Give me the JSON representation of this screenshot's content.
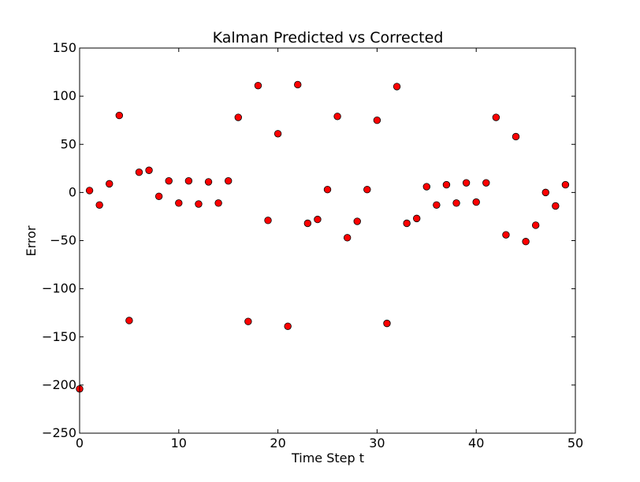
{
  "chart_data": {
    "type": "scatter",
    "title": "Kalman Predicted vs Corrected",
    "xlabel": "Time Step t",
    "ylabel": "Error",
    "xlim": [
      0,
      50
    ],
    "ylim": [
      -250,
      150
    ],
    "xticks": [
      0,
      10,
      20,
      30,
      40,
      50
    ],
    "yticks": [
      -250,
      -200,
      -150,
      -100,
      -50,
      0,
      50,
      100,
      150
    ],
    "xtick_labels": [
      "0",
      "10",
      "20",
      "30",
      "40",
      "50"
    ],
    "ytick_labels": [
      "−250",
      "−200",
      "−150",
      "−100",
      "−50",
      "0",
      "50",
      "100",
      "150"
    ],
    "grid": false,
    "marker_color": "#ff0000",
    "marker_edge_color": "#000000",
    "series": [
      {
        "x": [
          0,
          1,
          2,
          3,
          4,
          5,
          6,
          7,
          8,
          9,
          10,
          11,
          12,
          13,
          14,
          15,
          16,
          17,
          18,
          19,
          20,
          21,
          22,
          23,
          24,
          25,
          26,
          27,
          28,
          29,
          30,
          31,
          32,
          33,
          34,
          35,
          36,
          37,
          38,
          39,
          40,
          41,
          42,
          43,
          44,
          45,
          46,
          47,
          48,
          49
        ],
        "y": [
          -204,
          2,
          -13,
          9,
          80,
          -133,
          21,
          23,
          -4,
          12,
          -11,
          12,
          -12,
          11,
          -11,
          12,
          78,
          -134,
          111,
          -29,
          61,
          -139,
          112,
          -32,
          -28,
          3,
          79,
          -47,
          -30,
          3,
          75,
          -136,
          110,
          -32,
          -27,
          6,
          -13,
          8,
          -11,
          10,
          -10,
          10,
          78,
          -44,
          58,
          -51,
          -34,
          0,
          -14,
          8
        ]
      }
    ]
  }
}
